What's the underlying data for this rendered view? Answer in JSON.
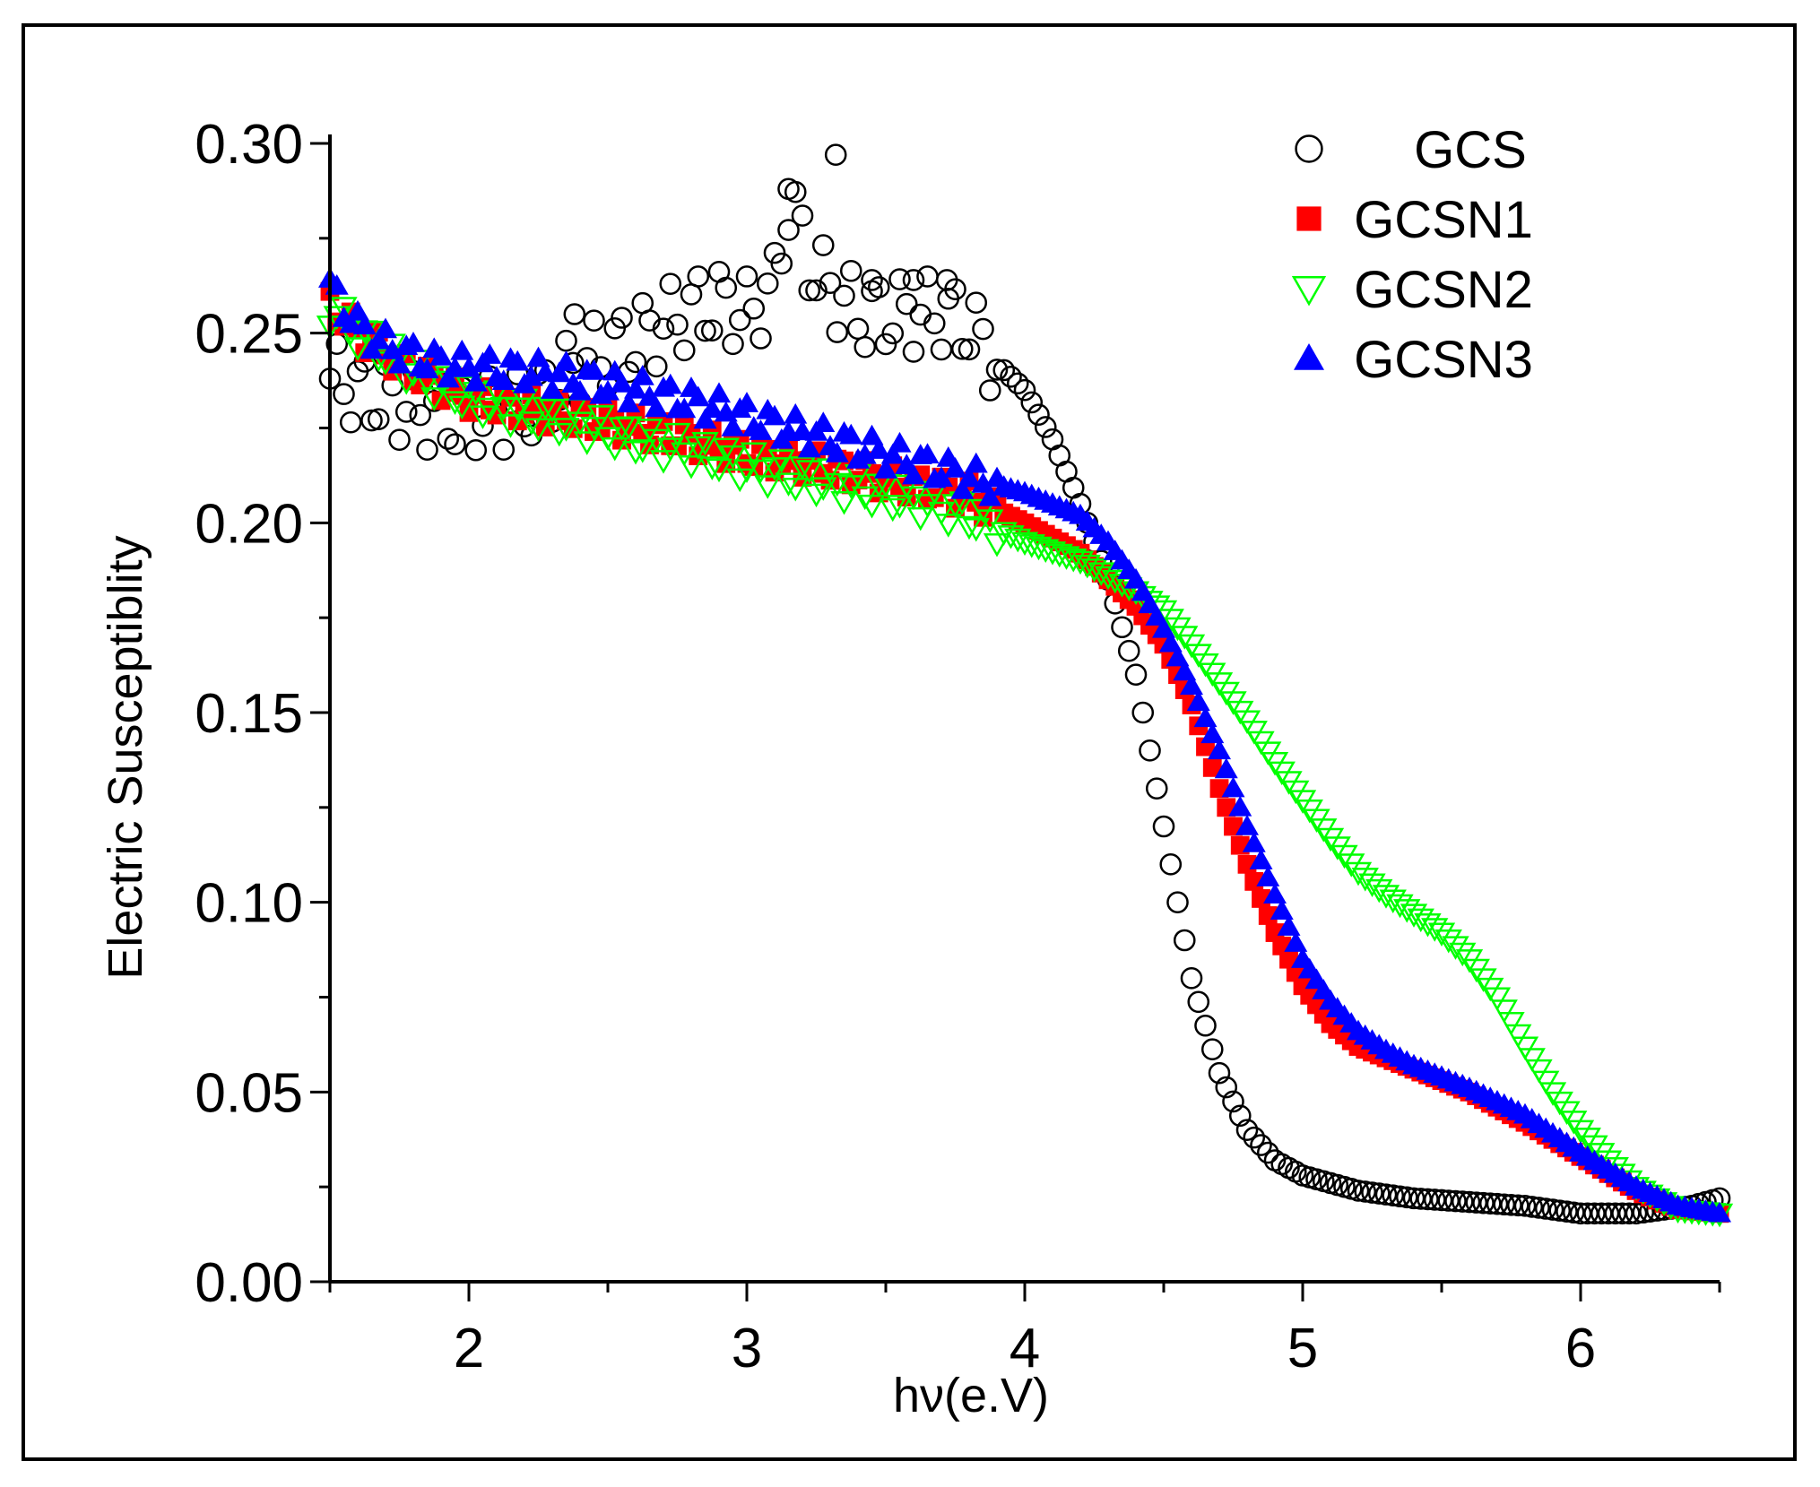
{
  "chart_data": {
    "type": "scatter",
    "title": "",
    "xlabel": "hν(e.V)",
    "ylabel": "Electric Susceptiblity",
    "xlim": [
      1.5,
      6.5
    ],
    "ylim": [
      0.0,
      0.3
    ],
    "x_ticks": [
      2,
      3,
      4,
      5,
      6
    ],
    "x_tick_labels": [
      "2",
      "3",
      "4",
      "5",
      "6"
    ],
    "y_ticks": [
      0.0,
      0.05,
      0.1,
      0.15,
      0.2,
      0.25,
      0.3
    ],
    "y_tick_labels": [
      "0.00",
      "0.05",
      "0.10",
      "0.15",
      "0.20",
      "0.25",
      "0.30"
    ],
    "legend_position": "top-right",
    "series": [
      {
        "name": "GCS",
        "marker": "open-circle",
        "color": "#000000",
        "points": [
          [
            1.5,
            0.238
          ],
          [
            1.6,
            0.235
          ],
          [
            1.7,
            0.233
          ],
          [
            1.8,
            0.23
          ],
          [
            1.9,
            0.228
          ],
          [
            2.0,
            0.228
          ],
          [
            2.1,
            0.229
          ],
          [
            2.2,
            0.23
          ],
          [
            2.3,
            0.235
          ],
          [
            2.4,
            0.242
          ],
          [
            2.5,
            0.245
          ],
          [
            2.6,
            0.248
          ],
          [
            2.7,
            0.252
          ],
          [
            2.8,
            0.256
          ],
          [
            2.9,
            0.258
          ],
          [
            3.0,
            0.255
          ],
          [
            3.1,
            0.262
          ],
          [
            3.15,
            0.285
          ],
          [
            3.2,
            0.275
          ],
          [
            3.25,
            0.265
          ],
          [
            3.3,
            0.262
          ],
          [
            3.4,
            0.255
          ],
          [
            3.5,
            0.255
          ],
          [
            3.6,
            0.255
          ],
          [
            3.7,
            0.255
          ],
          [
            3.8,
            0.252
          ],
          [
            3.9,
            0.242
          ],
          [
            4.0,
            0.235
          ],
          [
            4.1,
            0.222
          ],
          [
            4.2,
            0.205
          ],
          [
            4.3,
            0.185
          ],
          [
            4.4,
            0.16
          ],
          [
            4.5,
            0.12
          ],
          [
            4.6,
            0.08
          ],
          [
            4.7,
            0.055
          ],
          [
            4.8,
            0.04
          ],
          [
            4.9,
            0.032
          ],
          [
            5.0,
            0.028
          ],
          [
            5.2,
            0.024
          ],
          [
            5.4,
            0.022
          ],
          [
            5.6,
            0.021
          ],
          [
            5.8,
            0.02
          ],
          [
            6.0,
            0.018
          ],
          [
            6.2,
            0.018
          ],
          [
            6.4,
            0.02
          ],
          [
            6.5,
            0.022
          ]
        ],
        "outliers": [
          [
            2.38,
            0.255
          ],
          [
            3.32,
            0.297
          ],
          [
            3.15,
            0.288
          ],
          [
            3.6,
            0.264
          ],
          [
            3.72,
            0.264
          ],
          [
            3.45,
            0.264
          ]
        ]
      },
      {
        "name": "GCSN1",
        "marker": "filled-square",
        "color": "#ff0000",
        "points": [
          [
            1.5,
            0.258
          ],
          [
            1.6,
            0.25
          ],
          [
            1.7,
            0.245
          ],
          [
            1.8,
            0.24
          ],
          [
            1.9,
            0.236
          ],
          [
            2.0,
            0.233
          ],
          [
            2.2,
            0.23
          ],
          [
            2.4,
            0.228
          ],
          [
            2.6,
            0.225
          ],
          [
            2.8,
            0.222
          ],
          [
            3.0,
            0.218
          ],
          [
            3.2,
            0.216
          ],
          [
            3.4,
            0.213
          ],
          [
            3.6,
            0.21
          ],
          [
            3.8,
            0.207
          ],
          [
            4.0,
            0.2
          ],
          [
            4.2,
            0.192
          ],
          [
            4.3,
            0.185
          ],
          [
            4.4,
            0.178
          ],
          [
            4.5,
            0.168
          ],
          [
            4.6,
            0.152
          ],
          [
            4.7,
            0.13
          ],
          [
            4.8,
            0.11
          ],
          [
            4.9,
            0.092
          ],
          [
            5.0,
            0.078
          ],
          [
            5.1,
            0.068
          ],
          [
            5.2,
            0.062
          ],
          [
            5.4,
            0.056
          ],
          [
            5.6,
            0.05
          ],
          [
            5.8,
            0.042
          ],
          [
            6.0,
            0.033
          ],
          [
            6.2,
            0.024
          ],
          [
            6.35,
            0.019
          ],
          [
            6.5,
            0.018
          ]
        ]
      },
      {
        "name": "GCSN2",
        "marker": "open-triangle-down",
        "color": "#00ff00",
        "points": [
          [
            1.5,
            0.256
          ],
          [
            1.6,
            0.25
          ],
          [
            1.7,
            0.245
          ],
          [
            1.8,
            0.24
          ],
          [
            1.9,
            0.236
          ],
          [
            2.0,
            0.233
          ],
          [
            2.2,
            0.229
          ],
          [
            2.4,
            0.226
          ],
          [
            2.6,
            0.222
          ],
          [
            2.8,
            0.219
          ],
          [
            3.0,
            0.215
          ],
          [
            3.2,
            0.212
          ],
          [
            3.4,
            0.209
          ],
          [
            3.6,
            0.206
          ],
          [
            3.8,
            0.202
          ],
          [
            4.0,
            0.195
          ],
          [
            4.2,
            0.19
          ],
          [
            4.4,
            0.182
          ],
          [
            4.5,
            0.177
          ],
          [
            4.6,
            0.168
          ],
          [
            4.7,
            0.158
          ],
          [
            4.8,
            0.148
          ],
          [
            4.9,
            0.137
          ],
          [
            5.0,
            0.127
          ],
          [
            5.1,
            0.117
          ],
          [
            5.2,
            0.108
          ],
          [
            5.3,
            0.102
          ],
          [
            5.4,
            0.097
          ],
          [
            5.5,
            0.092
          ],
          [
            5.6,
            0.085
          ],
          [
            5.7,
            0.075
          ],
          [
            5.8,
            0.062
          ],
          [
            5.9,
            0.05
          ],
          [
            6.0,
            0.04
          ],
          [
            6.1,
            0.032
          ],
          [
            6.2,
            0.025
          ],
          [
            6.35,
            0.019
          ],
          [
            6.5,
            0.018
          ]
        ]
      },
      {
        "name": "GCSN3",
        "marker": "filled-triangle-up",
        "color": "#0000ff",
        "points": [
          [
            1.5,
            0.262
          ],
          [
            1.6,
            0.252
          ],
          [
            1.7,
            0.247
          ],
          [
            1.8,
            0.244
          ],
          [
            1.9,
            0.242
          ],
          [
            2.0,
            0.241
          ],
          [
            2.2,
            0.24
          ],
          [
            2.4,
            0.238
          ],
          [
            2.6,
            0.235
          ],
          [
            2.8,
            0.232
          ],
          [
            3.0,
            0.228
          ],
          [
            3.2,
            0.224
          ],
          [
            3.4,
            0.22
          ],
          [
            3.6,
            0.216
          ],
          [
            3.8,
            0.212
          ],
          [
            4.0,
            0.208
          ],
          [
            4.2,
            0.202
          ],
          [
            4.3,
            0.195
          ],
          [
            4.4,
            0.185
          ],
          [
            4.5,
            0.172
          ],
          [
            4.6,
            0.157
          ],
          [
            4.7,
            0.14
          ],
          [
            4.8,
            0.12
          ],
          [
            4.9,
            0.102
          ],
          [
            5.0,
            0.085
          ],
          [
            5.1,
            0.074
          ],
          [
            5.2,
            0.066
          ],
          [
            5.3,
            0.061
          ],
          [
            5.4,
            0.057
          ],
          [
            5.6,
            0.051
          ],
          [
            5.8,
            0.044
          ],
          [
            6.0,
            0.034
          ],
          [
            6.2,
            0.025
          ],
          [
            6.35,
            0.02
          ],
          [
            6.5,
            0.018
          ]
        ]
      }
    ]
  }
}
